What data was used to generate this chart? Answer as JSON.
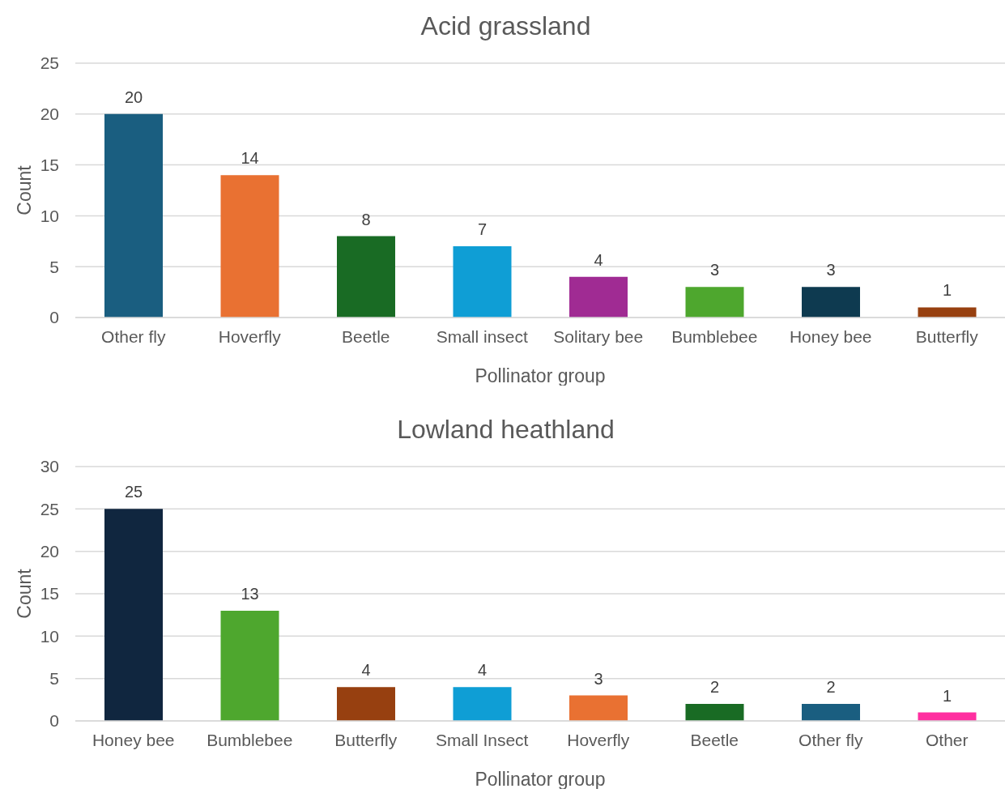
{
  "chart_data": [
    {
      "type": "bar",
      "title": "Acid grassland",
      "xlabel": "Pollinator group",
      "ylabel": "Count",
      "categories": [
        "Other fly",
        "Hoverfly",
        "Beetle",
        "Small insect",
        "Solitary bee",
        "Bumblebee",
        "Honey bee",
        "Butterfly"
      ],
      "values": [
        20,
        14,
        8,
        7,
        4,
        3,
        3,
        1
      ],
      "colors": [
        "#1a5e80",
        "#e97132",
        "#196b24",
        "#0f9ed5",
        "#a02b93",
        "#4ea72e",
        "#0e3a50",
        "#974010"
      ],
      "ylim": [
        0,
        25
      ],
      "yticks": [
        0,
        5,
        10,
        15,
        20,
        25
      ],
      "grid": "y",
      "data_labels": true
    },
    {
      "type": "bar",
      "title": "Lowland heathland",
      "xlabel": "Pollinator group",
      "ylabel": "Count",
      "categories": [
        "Honey bee",
        "Bumblebee",
        "Butterfly",
        "Small Insect",
        "Hoverfly",
        "Beetle",
        "Other fly",
        "Other"
      ],
      "values": [
        25,
        13,
        4,
        4,
        3,
        2,
        2,
        1
      ],
      "colors": [
        "#10263f",
        "#4ea72e",
        "#974010",
        "#0f9ed5",
        "#e97132",
        "#196b24",
        "#1a5e80",
        "#ff2fa0"
      ],
      "ylim": [
        0,
        30
      ],
      "yticks": [
        0,
        5,
        10,
        15,
        20,
        25,
        30
      ],
      "grid": "y",
      "data_labels": true
    }
  ]
}
